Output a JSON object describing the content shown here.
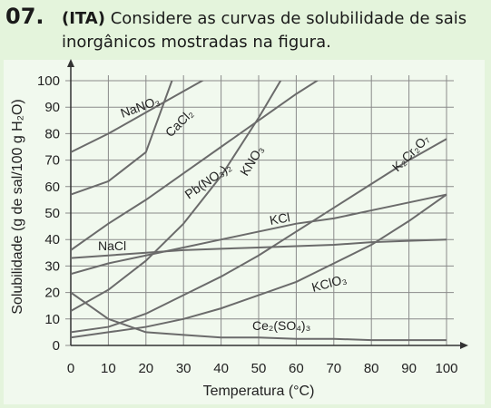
{
  "question": {
    "number": "07.",
    "source": "(ITA)",
    "text": "Considere as curvas de solubilidade de sais inorgânicos mostradas na figura."
  },
  "chart_data": {
    "type": "line",
    "x_label": "Temperatura (°C)",
    "y_label": "Solubilidade (g de sal/100 g H₂O)",
    "x": [
      0,
      10,
      20,
      30,
      40,
      50,
      60,
      70,
      80,
      90,
      100
    ],
    "xlim": [
      0,
      100
    ],
    "ylim": [
      0,
      100
    ],
    "xticks": [
      0,
      10,
      20,
      30,
      40,
      50,
      60,
      70,
      80,
      90,
      100
    ],
    "yticks": [
      0,
      10,
      20,
      30,
      40,
      50,
      60,
      70,
      80,
      90,
      100
    ],
    "grid": true,
    "series": [
      {
        "name": "NaNO₃",
        "color": "#6b6b6b",
        "values": [
          73,
          80,
          88,
          96,
          104,
          null,
          null,
          null,
          null,
          null,
          null
        ]
      },
      {
        "name": "CaCl₂",
        "color": "#6b6b6b",
        "values": [
          57,
          62,
          73,
          112,
          null,
          null,
          null,
          null,
          null,
          null,
          null
        ]
      },
      {
        "name": "Pb(NO₃)₂",
        "color": "#6b6b6b",
        "values": [
          36,
          46,
          55,
          65,
          75,
          85,
          95,
          104,
          null,
          null,
          null
        ]
      },
      {
        "name": "KNO₃",
        "color": "#6b6b6b",
        "values": [
          13,
          21,
          32,
          46,
          64,
          86,
          110,
          null,
          null,
          null,
          null
        ]
      },
      {
        "name": "K₂Cr₂O₇",
        "color": "#6b6b6b",
        "values": [
          5,
          7,
          12,
          19,
          26,
          34,
          43,
          52,
          61,
          70,
          78
        ]
      },
      {
        "name": "KCl",
        "color": "#6b6b6b",
        "values": [
          27,
          31,
          34,
          37,
          40,
          43,
          46,
          48,
          51,
          54,
          57
        ]
      },
      {
        "name": "NaCl",
        "color": "#6b6b6b",
        "values": [
          33,
          34,
          35,
          36,
          36.5,
          37,
          37.5,
          38,
          39,
          39.5,
          40
        ]
      },
      {
        "name": "KClO₃",
        "color": "#6b6b6b",
        "values": [
          3,
          5,
          7,
          10,
          14,
          19,
          24,
          31,
          38,
          47,
          57
        ]
      },
      {
        "name": "Ce₂(SO₄)₃",
        "color": "#6b6b6b",
        "values": [
          20,
          10,
          5,
          4,
          3,
          3,
          2.5,
          2.5,
          2,
          2,
          2
        ]
      }
    ]
  }
}
